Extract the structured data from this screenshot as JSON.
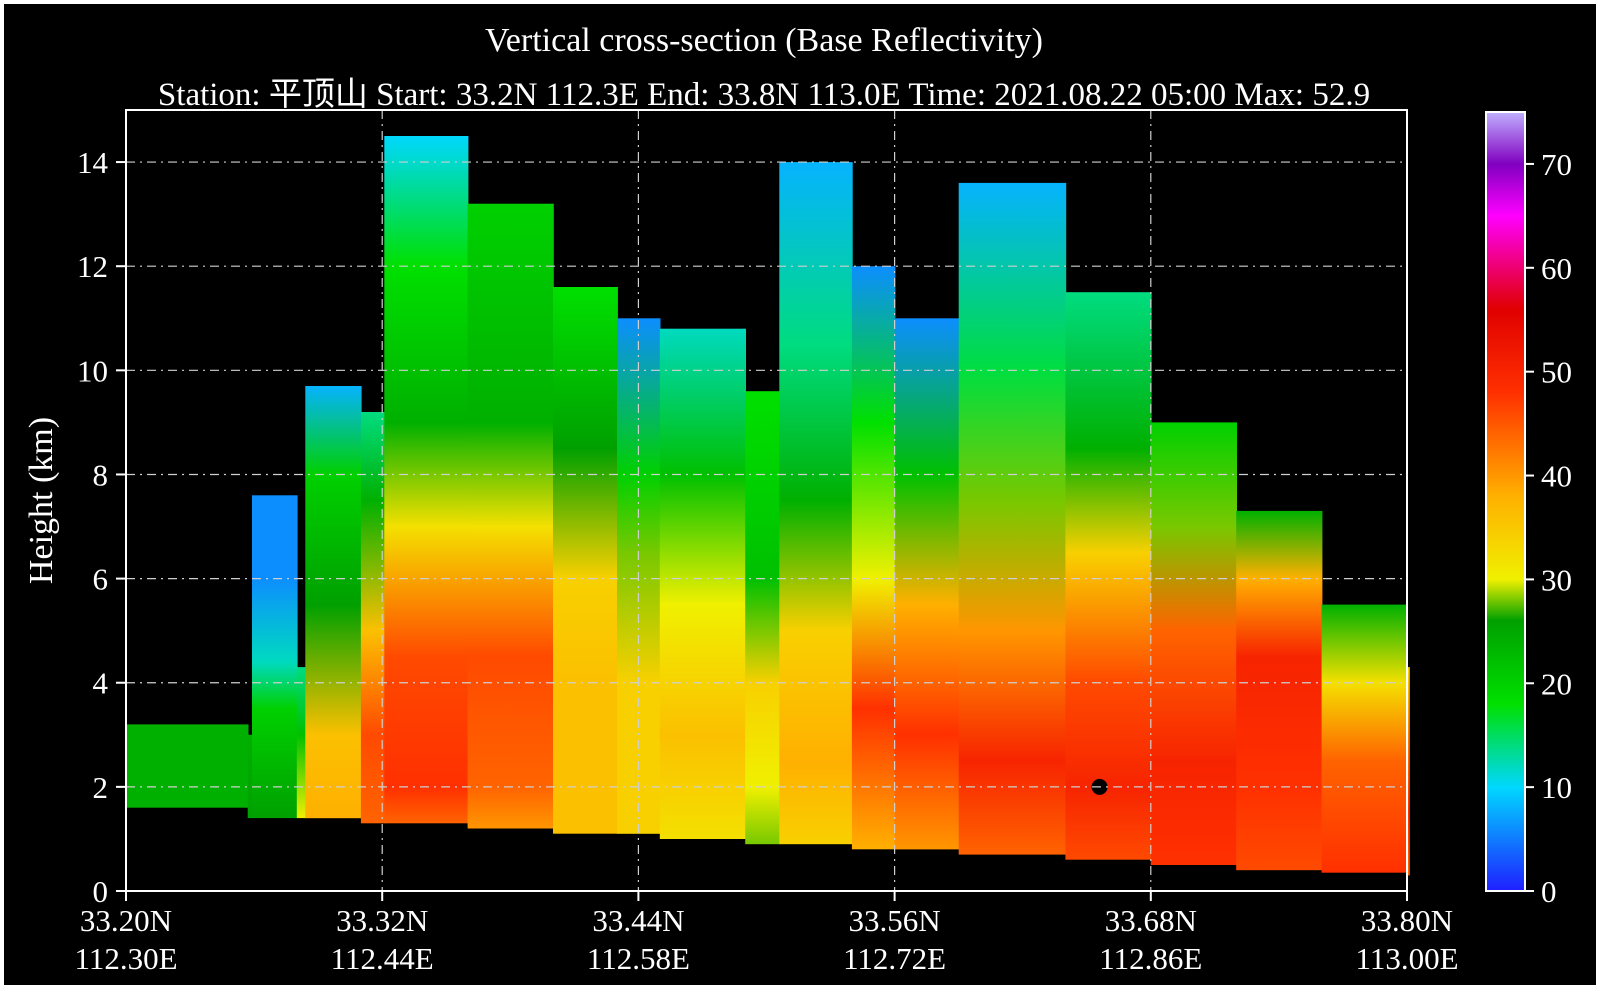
{
  "chart_data": {
    "type": "heatmap",
    "title": "Vertical cross-section (Base Reflectivity)",
    "subtitle": "Station: 平顶山 Start: 33.2N 112.3E End: 33.8N 113.0E Time: 2021.08.22 05:00 Max: 52.9",
    "ylabel": "Height (km)",
    "xlabel": "",
    "x_ticks": [
      {
        "lat": "33.20N",
        "lon": "112.30E"
      },
      {
        "lat": "33.32N",
        "lon": "112.44E"
      },
      {
        "lat": "33.44N",
        "lon": "112.58E"
      },
      {
        "lat": "33.56N",
        "lon": "112.72E"
      },
      {
        "lat": "33.68N",
        "lon": "112.86E"
      },
      {
        "lat": "33.80N",
        "lon": "113.00E"
      }
    ],
    "y_ticks": [
      "0",
      "2",
      "4",
      "6",
      "8",
      "10",
      "12",
      "14"
    ],
    "ylim": [
      0,
      15
    ],
    "grid": true,
    "colorbar": {
      "range": [
        0,
        75
      ],
      "ticks": [
        "0",
        "10",
        "20",
        "30",
        "40",
        "50",
        "60",
        "70"
      ],
      "stops": [
        {
          "value": 0,
          "color": "#1f1fff"
        },
        {
          "value": 10,
          "color": "#00d8ff"
        },
        {
          "value": 18,
          "color": "#00e000"
        },
        {
          "value": 26,
          "color": "#00a000"
        },
        {
          "value": 30,
          "color": "#f0f000"
        },
        {
          "value": 38,
          "color": "#ffb000"
        },
        {
          "value": 48,
          "color": "#ff3000"
        },
        {
          "value": 56,
          "color": "#e00000"
        },
        {
          "value": 65,
          "color": "#ff00ff"
        },
        {
          "value": 70,
          "color": "#8000c0"
        },
        {
          "value": 75,
          "color": "#c0b0ff"
        }
      ]
    },
    "echo_columns": [
      {
        "lat": 33.2,
        "top": 3.2,
        "base": 1.6,
        "levels": [
          {
            "h": 3.2,
            "dbz": 24
          },
          {
            "h": 1.6,
            "dbz": 24
          }
        ]
      },
      {
        "lat": 33.257,
        "top": 3.0,
        "base": 1.4,
        "levels": [
          {
            "h": 3.0,
            "dbz": 24
          },
          {
            "h": 1.4,
            "dbz": 26
          }
        ]
      },
      {
        "lat": 33.259,
        "top": 7.6,
        "base": 1.4,
        "levels": [
          {
            "h": 7.6,
            "dbz": 6
          },
          {
            "h": 6.0,
            "dbz": 6
          },
          {
            "h": 4.4,
            "dbz": 12
          },
          {
            "h": 3.5,
            "dbz": 20
          },
          {
            "h": 1.4,
            "dbz": 26
          }
        ]
      },
      {
        "lat": 33.28,
        "top": 4.3,
        "base": 1.4,
        "levels": [
          {
            "h": 4.3,
            "dbz": 14
          },
          {
            "h": 3.0,
            "dbz": 22
          },
          {
            "h": 1.4,
            "dbz": 30
          }
        ]
      },
      {
        "lat": 33.284,
        "top": 9.7,
        "base": 1.4,
        "levels": [
          {
            "h": 9.7,
            "dbz": 8
          },
          {
            "h": 8.0,
            "dbz": 20
          },
          {
            "h": 5.5,
            "dbz": 26
          },
          {
            "h": 3.0,
            "dbz": 36
          },
          {
            "h": 1.4,
            "dbz": 38
          }
        ]
      },
      {
        "lat": 33.31,
        "top": 9.2,
        "base": 1.3,
        "levels": [
          {
            "h": 9.2,
            "dbz": 14
          },
          {
            "h": 7.5,
            "dbz": 24
          },
          {
            "h": 5.0,
            "dbz": 36
          },
          {
            "h": 3.0,
            "dbz": 46
          },
          {
            "h": 1.3,
            "dbz": 44
          }
        ]
      },
      {
        "lat": 33.321,
        "top": 14.5,
        "base": 1.3,
        "levels": [
          {
            "h": 14.5,
            "dbz": 10
          },
          {
            "h": 12.0,
            "dbz": 18
          },
          {
            "h": 9.0,
            "dbz": 24
          },
          {
            "h": 7.0,
            "dbz": 32
          },
          {
            "h": 4.5,
            "dbz": 46
          },
          {
            "h": 2.0,
            "dbz": 48
          },
          {
            "h": 1.3,
            "dbz": 44
          }
        ]
      },
      {
        "lat": 33.36,
        "top": 13.2,
        "base": 1.2,
        "levels": [
          {
            "h": 13.2,
            "dbz": 20
          },
          {
            "h": 9.0,
            "dbz": 24
          },
          {
            "h": 7.0,
            "dbz": 32
          },
          {
            "h": 4.5,
            "dbz": 46
          },
          {
            "h": 2.0,
            "dbz": 44
          },
          {
            "h": 1.2,
            "dbz": 40
          }
        ]
      },
      {
        "lat": 33.4,
        "top": 11.6,
        "base": 1.1,
        "levels": [
          {
            "h": 11.6,
            "dbz": 18
          },
          {
            "h": 8.5,
            "dbz": 26
          },
          {
            "h": 6.0,
            "dbz": 34
          },
          {
            "h": 4.0,
            "dbz": 36
          },
          {
            "h": 1.1,
            "dbz": 36
          }
        ]
      },
      {
        "lat": 33.43,
        "top": 11.0,
        "base": 1.1,
        "levels": [
          {
            "h": 11.0,
            "dbz": 6
          },
          {
            "h": 8.0,
            "dbz": 20
          },
          {
            "h": 6.5,
            "dbz": 28
          },
          {
            "h": 4.0,
            "dbz": 34
          },
          {
            "h": 1.1,
            "dbz": 34
          }
        ]
      },
      {
        "lat": 33.45,
        "top": 10.8,
        "base": 1.0,
        "levels": [
          {
            "h": 10.8,
            "dbz": 12
          },
          {
            "h": 8.0,
            "dbz": 22
          },
          {
            "h": 5.5,
            "dbz": 30
          },
          {
            "h": 3.0,
            "dbz": 36
          },
          {
            "h": 1.0,
            "dbz": 32
          }
        ]
      },
      {
        "lat": 33.49,
        "top": 9.6,
        "base": 0.9,
        "levels": [
          {
            "h": 9.6,
            "dbz": 18
          },
          {
            "h": 6.0,
            "dbz": 22
          },
          {
            "h": 4.0,
            "dbz": 34
          },
          {
            "h": 2.0,
            "dbz": 30
          },
          {
            "h": 0.9,
            "dbz": 28
          }
        ]
      },
      {
        "lat": 33.506,
        "top": 14.0,
        "base": 0.9,
        "levels": [
          {
            "h": 14.0,
            "dbz": 8
          },
          {
            "h": 10.5,
            "dbz": 14
          },
          {
            "h": 7.5,
            "dbz": 24
          },
          {
            "h": 5.0,
            "dbz": 34
          },
          {
            "h": 2.5,
            "dbz": 38
          },
          {
            "h": 0.9,
            "dbz": 34
          }
        ]
      },
      {
        "lat": 33.54,
        "top": 12.0,
        "base": 0.8,
        "levels": [
          {
            "h": 12.0,
            "dbz": 6
          },
          {
            "h": 9.0,
            "dbz": 18
          },
          {
            "h": 6.0,
            "dbz": 30
          },
          {
            "h": 3.5,
            "dbz": 48
          },
          {
            "h": 0.8,
            "dbz": 38
          }
        ]
      },
      {
        "lat": 33.56,
        "top": 11.0,
        "base": 0.8,
        "levels": [
          {
            "h": 11.0,
            "dbz": 6
          },
          {
            "h": 8.0,
            "dbz": 22
          },
          {
            "h": 5.5,
            "dbz": 38
          },
          {
            "h": 3.0,
            "dbz": 48
          },
          {
            "h": 0.8,
            "dbz": 40
          }
        ]
      },
      {
        "lat": 33.59,
        "top": 13.6,
        "base": 0.7,
        "levels": [
          {
            "h": 13.6,
            "dbz": 8
          },
          {
            "h": 10.0,
            "dbz": 16
          },
          {
            "h": 7.5,
            "dbz": 28
          },
          {
            "h": 5.0,
            "dbz": 40
          },
          {
            "h": 2.5,
            "dbz": 50
          },
          {
            "h": 0.7,
            "dbz": 44
          }
        ]
      },
      {
        "lat": 33.64,
        "top": 11.5,
        "base": 0.6,
        "levels": [
          {
            "h": 11.5,
            "dbz": 14
          },
          {
            "h": 8.5,
            "dbz": 24
          },
          {
            "h": 6.5,
            "dbz": 34
          },
          {
            "h": 4.0,
            "dbz": 46
          },
          {
            "h": 2.0,
            "dbz": 50
          },
          {
            "h": 0.6,
            "dbz": 46
          }
        ]
      },
      {
        "lat": 33.68,
        "top": 9.0,
        "base": 0.5,
        "levels": [
          {
            "h": 9.0,
            "dbz": 20
          },
          {
            "h": 7.0,
            "dbz": 28
          },
          {
            "h": 5.0,
            "dbz": 44
          },
          {
            "h": 2.5,
            "dbz": 50
          },
          {
            "h": 0.5,
            "dbz": 48
          }
        ]
      },
      {
        "lat": 33.72,
        "top": 7.3,
        "base": 0.4,
        "levels": [
          {
            "h": 7.3,
            "dbz": 24
          },
          {
            "h": 6.0,
            "dbz": 38
          },
          {
            "h": 4.5,
            "dbz": 50
          },
          {
            "h": 2.0,
            "dbz": 48
          },
          {
            "h": 0.4,
            "dbz": 46
          }
        ]
      },
      {
        "lat": 33.76,
        "top": 5.5,
        "base": 0.35,
        "levels": [
          {
            "h": 5.5,
            "dbz": 24
          },
          {
            "h": 4.0,
            "dbz": 32
          },
          {
            "h": 2.5,
            "dbz": 44
          },
          {
            "h": 0.35,
            "dbz": 48
          }
        ]
      },
      {
        "lat": 33.8,
        "top": 4.3,
        "base": 0.3,
        "levels": [
          {
            "h": 4.3,
            "dbz": 34
          },
          {
            "h": 3.0,
            "dbz": 42
          },
          {
            "h": 1.5,
            "dbz": 48
          },
          {
            "h": 0.3,
            "dbz": 44
          }
        ]
      }
    ],
    "marker": {
      "lat": 33.656,
      "height": 2.0
    }
  }
}
